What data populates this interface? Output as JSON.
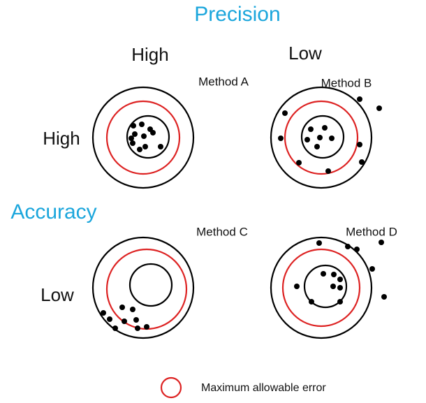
{
  "header": {
    "title": "Precision"
  },
  "columns": [
    "High",
    "Low"
  ],
  "row_axis": "Accuracy",
  "rows": [
    "High",
    "Low"
  ],
  "methods": [
    "Method A",
    "Method B",
    "Method C",
    "Method D"
  ],
  "legend": {
    "label": "Maximum allowable error"
  }
}
